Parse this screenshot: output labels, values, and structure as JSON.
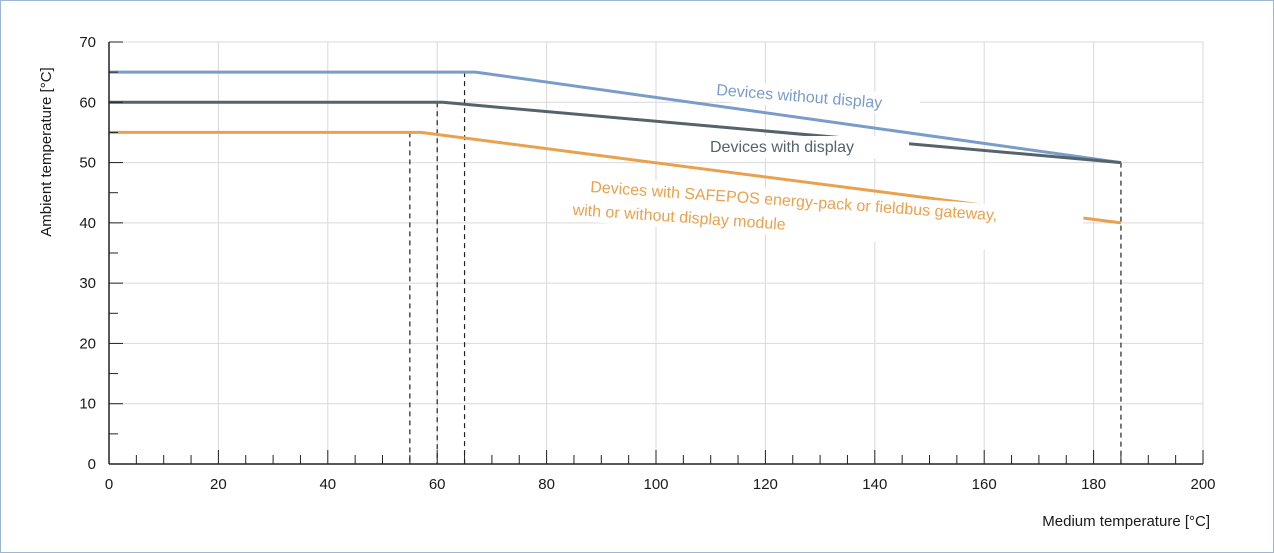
{
  "chart_data": {
    "type": "line",
    "title": "",
    "xlabel": "Medium temperature  [°C]",
    "ylabel": "Ambient temperature  [°C]",
    "xlim": [
      0,
      200
    ],
    "ylim": [
      0,
      70
    ],
    "x_ticks": [
      0,
      20,
      40,
      60,
      80,
      100,
      120,
      140,
      160,
      180,
      200
    ],
    "y_ticks": [
      0,
      10,
      20,
      30,
      40,
      50,
      60,
      70
    ],
    "grid": true,
    "series": [
      {
        "name": "Devices without display",
        "color": "#7a9cc8",
        "points": [
          [
            0,
            65
          ],
          [
            67,
            65
          ],
          [
            185,
            50
          ]
        ],
        "label_angle": 4.5
      },
      {
        "name": "Devices with display",
        "color": "#55636b",
        "points": [
          [
            0,
            60
          ],
          [
            61,
            60
          ],
          [
            185,
            50
          ]
        ],
        "label_angle": 0
      },
      {
        "name": "Devices with SAFEPOS energy-pack or fieldbus gateway,",
        "name_line2": "with or without display module",
        "color": "#e8a24e",
        "points": [
          [
            0,
            55
          ],
          [
            57,
            55
          ],
          [
            185,
            40
          ]
        ],
        "label_angle": 4
      }
    ],
    "reference_lines": [
      {
        "x": 55,
        "y_top": 55
      },
      {
        "x": 60,
        "y_top": 60
      },
      {
        "x": 65,
        "y_top": 65
      },
      {
        "x": 185,
        "y_top": 50
      }
    ]
  }
}
